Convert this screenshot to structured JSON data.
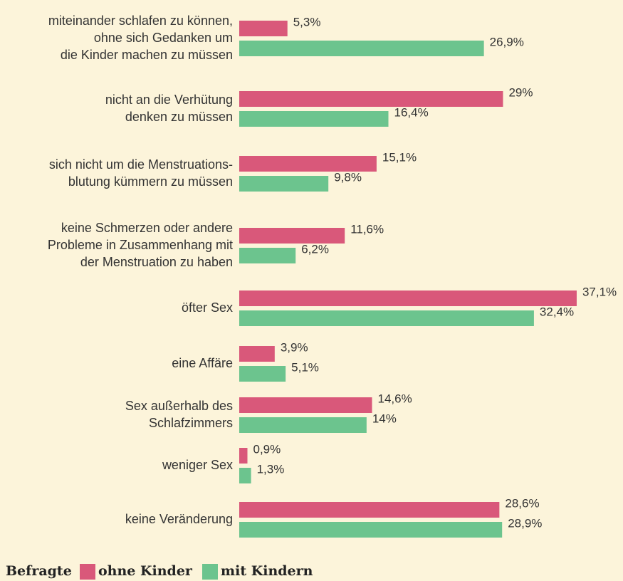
{
  "chart_data": {
    "type": "hbar",
    "categories": [
      "miteinander schlafen zu können,\nohne sich Gedanken um\ndie Kinder machen zu müssen",
      "nicht an die Verhütung\ndenken zu müssen",
      "sich nicht um die Menstruations-\nblutung kümmern zu müssen",
      "keine Schmerzen oder andere\nProbleme in Zusammenhang mit\nder Menstruation zu haben",
      "öfter Sex",
      "eine Affäre",
      "Sex außerhalb des\nSchlafzimmers",
      "weniger Sex",
      "keine Veränderung"
    ],
    "series": [
      {
        "name": "ohne Kinder",
        "color": "#d9587a",
        "values": [
          5.3,
          29,
          15.1,
          11.6,
          37.1,
          3.9,
          14.6,
          0.9,
          28.6
        ],
        "value_labels": [
          "5,3%",
          "29%",
          "15,1%",
          "11,6%",
          "37,1%",
          "3,9%",
          "14,6%",
          "0,9%",
          "28,6%"
        ]
      },
      {
        "name": "mit Kindern",
        "color": "#6cc48e",
        "values": [
          26.9,
          16.4,
          9.8,
          6.2,
          32.4,
          5.1,
          14,
          1.3,
          28.9
        ],
        "value_labels": [
          "26,9%",
          "16,4%",
          "9,8%",
          "6,2%",
          "32,4%",
          "5,1%",
          "14%",
          "1,3%",
          "28,9%"
        ]
      }
    ],
    "legend_title": "Befragte",
    "xlim": [
      0,
      40
    ]
  }
}
